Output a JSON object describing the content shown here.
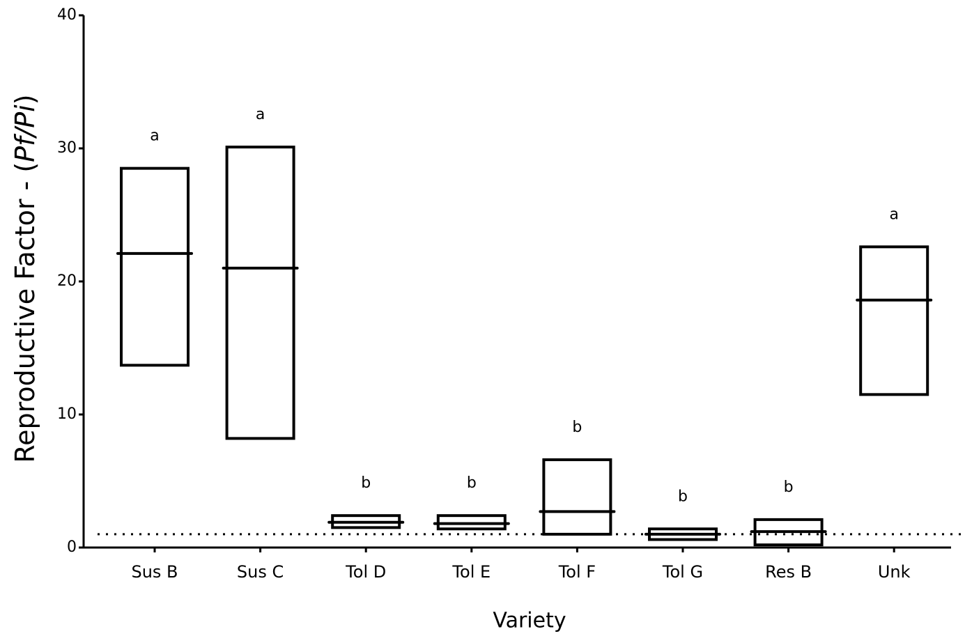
{
  "chart_data": {
    "type": "floating_bar",
    "ylabel": [
      "Reproductive Factor - (",
      "Pf/Pi",
      ")"
    ],
    "xlabel": "Variety",
    "categories": [
      "Sus B",
      "Sus C",
      "Tol D",
      "Tol E",
      "Tol F",
      "Tol G",
      "Res B",
      "Unk"
    ],
    "low": [
      13.7,
      8.2,
      1.5,
      1.4,
      1.0,
      0.6,
      0.2,
      11.5
    ],
    "high": [
      28.5,
      30.1,
      2.4,
      2.4,
      6.6,
      1.4,
      2.1,
      22.6
    ],
    "mean": [
      22.1,
      21.0,
      1.9,
      1.8,
      2.7,
      1.0,
      1.2,
      18.6
    ],
    "letters": [
      "a",
      "a",
      "b",
      "b",
      "b",
      "b",
      "b",
      "a"
    ],
    "reference_line": 1,
    "color": "#000000",
    "ylim": [
      0,
      40
    ],
    "yticks": [
      0,
      10,
      20,
      30,
      40
    ]
  }
}
